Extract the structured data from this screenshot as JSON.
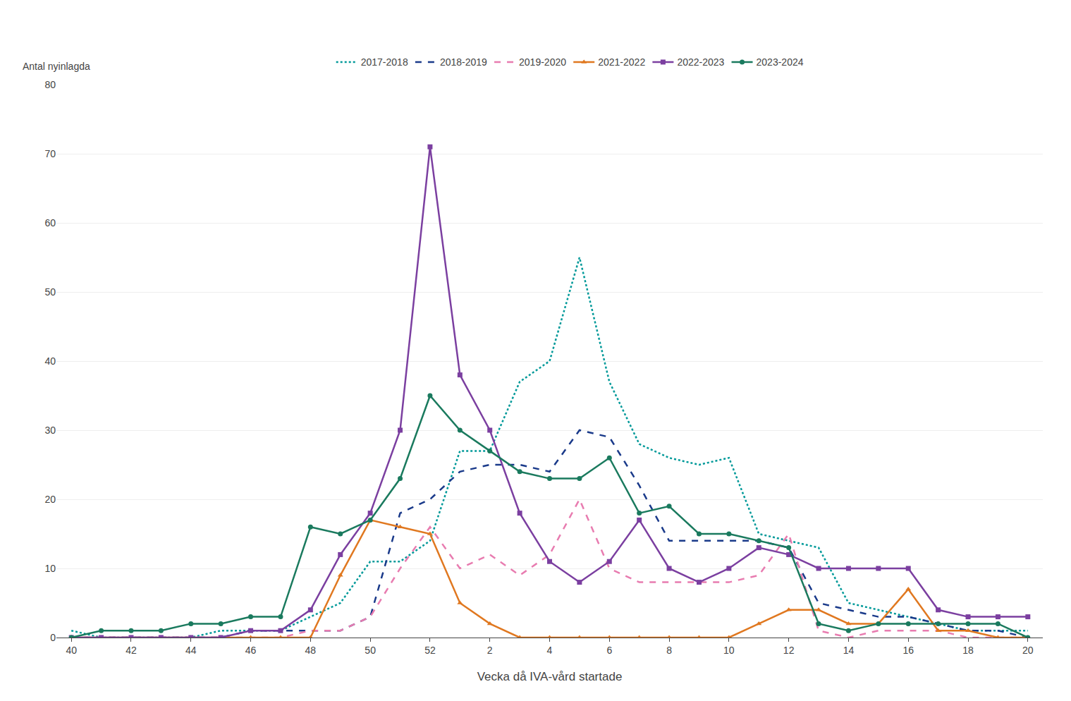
{
  "chart_data": {
    "type": "line",
    "xlabel": "Vecka då IVA-vård startade",
    "ylabel": "Antal nyinlagda",
    "categories": [
      "40",
      null,
      "42",
      null,
      "44",
      null,
      "46",
      null,
      "48",
      null,
      "50",
      null,
      "52",
      null,
      "2",
      null,
      "4",
      null,
      "6",
      null,
      "8",
      null,
      "10",
      null,
      "12",
      null,
      "14",
      null,
      "16",
      null,
      "18",
      null,
      "20"
    ],
    "ylim": [
      0,
      80
    ],
    "yticks": [
      0,
      10,
      20,
      30,
      40,
      50,
      60,
      70,
      80
    ],
    "grid": true,
    "legend": "top",
    "series": [
      {
        "name": "2017-2018",
        "color": "#009999",
        "line_style": "dotted",
        "values": [
          1,
          0,
          0,
          0,
          0,
          1,
          1,
          1,
          3,
          5,
          11,
          11,
          14,
          27,
          27,
          37,
          40,
          55,
          37,
          28,
          26,
          25,
          26,
          15,
          14,
          13,
          5,
          4,
          3,
          2,
          1,
          1,
          1
        ]
      },
      {
        "name": "2018-2019",
        "color": "#1a3a8a",
        "line_style": "dashed",
        "values": [
          0,
          0,
          0,
          0,
          0,
          0,
          1,
          1,
          1,
          1,
          3,
          18,
          20,
          24,
          25,
          25,
          24,
          30,
          29,
          22,
          14,
          14,
          14,
          14,
          13,
          5,
          4,
          3,
          3,
          2,
          1,
          1,
          0
        ]
      },
      {
        "name": "2019-2020",
        "color": "#e87cb0",
        "line_style": "dashed",
        "values": [
          0,
          0,
          0,
          0,
          0,
          0,
          0,
          0,
          1,
          1,
          3,
          10,
          16,
          10,
          12,
          9,
          12,
          20,
          10,
          8,
          8,
          8,
          8,
          9,
          15,
          1,
          0,
          1,
          1,
          1,
          0,
          0,
          0
        ]
      },
      {
        "name": "2021-2022",
        "color": "#e07820",
        "line_style": "solid",
        "marker": "triangle",
        "values": [
          0,
          0,
          0,
          0,
          0,
          0,
          0,
          0,
          0,
          9,
          17,
          16,
          15,
          5,
          2,
          0,
          0,
          0,
          0,
          0,
          0,
          0,
          0,
          2,
          4,
          4,
          2,
          2,
          7,
          1,
          1,
          0,
          0
        ]
      },
      {
        "name": "2022-2023",
        "color": "#7b3fa0",
        "line_style": "solid",
        "marker": "square",
        "values": [
          0,
          0,
          0,
          0,
          0,
          0,
          1,
          1,
          4,
          12,
          18,
          30,
          71,
          38,
          30,
          18,
          11,
          8,
          11,
          17,
          10,
          8,
          10,
          13,
          12,
          10,
          10,
          10,
          10,
          4,
          3,
          3,
          3
        ]
      },
      {
        "name": "2023-2024",
        "color": "#1a7a5e",
        "line_style": "solid",
        "marker": "circle",
        "values": [
          0,
          1,
          1,
          1,
          2,
          2,
          3,
          3,
          16,
          15,
          17,
          23,
          35,
          30,
          27,
          24,
          23,
          23,
          26,
          18,
          19,
          15,
          15,
          14,
          13,
          2,
          1,
          2,
          2,
          2,
          2,
          2,
          0
        ]
      }
    ]
  }
}
